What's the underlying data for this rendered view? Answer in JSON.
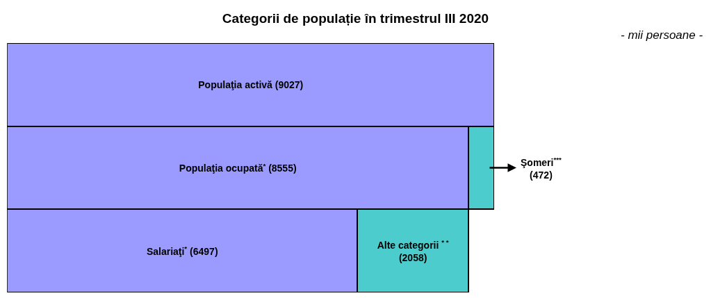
{
  "chart_data": {
    "type": "bar",
    "orientation": "horizontal",
    "stacked": true,
    "title": "Categorii de populație în trimestrul III 2020",
    "subtitle": "- mii persoane -",
    "categories": [
      null,
      null,
      null
    ],
    "series": [
      {
        "color": "#9a9aff",
        "values": [
          9027,
          8555,
          6497
        ],
        "value_labels": [
          "Populaţia activă (9027)",
          "Populaţia ocupată$^{*}$ (8555)",
          "Salariaţi$^{*}$ (6497)"
        ]
      },
      {
        "color": "#4ccccc",
        "values": [
          null,
          472,
          2058
        ],
        "value_labels": [
          null,
          "Şomeri$^{***}$\n(472)",
          "Alte categorii $^{* *}$\n(2058)"
        ]
      }
    ],
    "tick_labels": false
  }
}
